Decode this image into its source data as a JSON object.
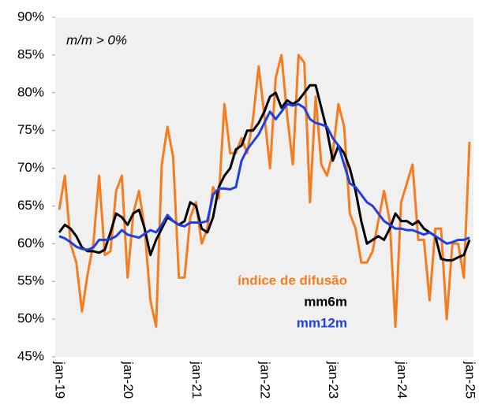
{
  "chart_data": {
    "type": "line",
    "annotation": "m/m > 0%",
    "categories": [
      "jan-19",
      null,
      null,
      null,
      null,
      null,
      null,
      null,
      null,
      null,
      null,
      null,
      "jan-20",
      null,
      null,
      null,
      null,
      null,
      null,
      null,
      null,
      null,
      null,
      null,
      "jan-21",
      null,
      null,
      null,
      null,
      null,
      null,
      null,
      null,
      null,
      null,
      null,
      "jan-22",
      null,
      null,
      null,
      null,
      null,
      null,
      null,
      null,
      null,
      null,
      null,
      "jan-23",
      null,
      null,
      null,
      null,
      null,
      null,
      null,
      null,
      null,
      null,
      null,
      "jan-24",
      null,
      null,
      null,
      null,
      null,
      null,
      null,
      null,
      null,
      null,
      null,
      "jan-25"
    ],
    "series": [
      {
        "name": "índice de difusão",
        "color": "#f57c1f",
        "values": [
          64.5,
          69,
          60,
          57.5,
          51,
          56,
          60,
          69,
          58.5,
          59,
          67,
          69,
          55.5,
          64,
          67,
          62,
          52.5,
          49,
          70.5,
          75.5,
          71.5,
          55.5,
          55.5,
          63.5,
          65.5,
          60,
          62,
          67.5,
          66,
          78.5,
          72,
          72,
          74,
          72,
          76.5,
          83.5,
          77,
          70,
          82,
          85,
          77,
          70.5,
          85,
          84,
          65.5,
          79.5,
          70.5,
          69,
          72,
          78.5,
          75.5,
          64,
          62,
          57.5,
          57.5,
          59,
          63,
          67,
          63,
          49,
          65.5,
          68,
          70.5,
          60.5,
          60.5,
          52.5,
          62,
          62,
          50,
          60,
          60,
          55.5,
          73.5
        ]
      },
      {
        "name": "mm6m",
        "color": "#000000",
        "values": [
          61.5,
          62.5,
          62,
          61,
          59.5,
          59,
          59,
          58.8,
          59.2,
          61.5,
          64,
          63.5,
          62.5,
          64,
          64.5,
          62,
          58.5,
          60.5,
          62,
          63.5,
          63,
          62.5,
          63,
          65.5,
          65,
          62,
          61.5,
          63.5,
          67.5,
          69,
          70,
          72.5,
          73,
          75,
          75,
          76,
          77.5,
          79.5,
          80,
          78,
          79,
          78.5,
          79,
          80,
          81,
          81,
          78,
          75,
          71,
          73,
          72,
          70,
          67,
          63,
          60,
          60.5,
          61,
          60.5,
          62,
          64,
          63,
          63,
          62.5,
          63,
          62,
          61.5,
          61,
          58,
          57.8,
          57.8,
          58.2,
          58.5,
          60.5
        ]
      },
      {
        "name": "mm12m",
        "color": "#1f3fe0",
        "values": [
          61,
          60.7,
          60.2,
          59.6,
          59.3,
          59.2,
          59.5,
          60.5,
          60.5,
          60.6,
          61,
          61.8,
          61.2,
          61,
          60.8,
          61.3,
          61.8,
          61.5,
          62.5,
          63.8,
          63,
          62.5,
          62.3,
          62.8,
          62.8,
          62.8,
          63,
          66.5,
          67.3,
          67.3,
          67.2,
          67.5,
          71,
          72.5,
          73.5,
          74.5,
          76,
          77.5,
          76.5,
          77.5,
          78.5,
          78.3,
          78.5,
          78,
          76.5,
          76,
          75.8,
          75.5,
          74,
          73,
          70.5,
          68,
          67.5,
          66.5,
          65.5,
          65,
          64,
          63,
          62.5,
          62,
          62,
          61.8,
          61.8,
          61.5,
          61.2,
          61.5,
          61,
          60.5,
          60,
          60.2,
          60.5,
          60.5,
          60.8
        ]
      }
    ],
    "ylim": [
      45,
      90
    ],
    "yticks": [
      {
        "value": 45,
        "label": "45%"
      },
      {
        "value": 50,
        "label": "50%"
      },
      {
        "value": 55,
        "label": "55%"
      },
      {
        "value": 60,
        "label": "60%"
      },
      {
        "value": 65,
        "label": "65%"
      },
      {
        "value": 70,
        "label": "70%"
      },
      {
        "value": 75,
        "label": "75%"
      },
      {
        "value": 80,
        "label": "80%"
      },
      {
        "value": 85,
        "label": "85%"
      },
      {
        "value": 90,
        "label": "90%"
      }
    ],
    "grid": false
  }
}
